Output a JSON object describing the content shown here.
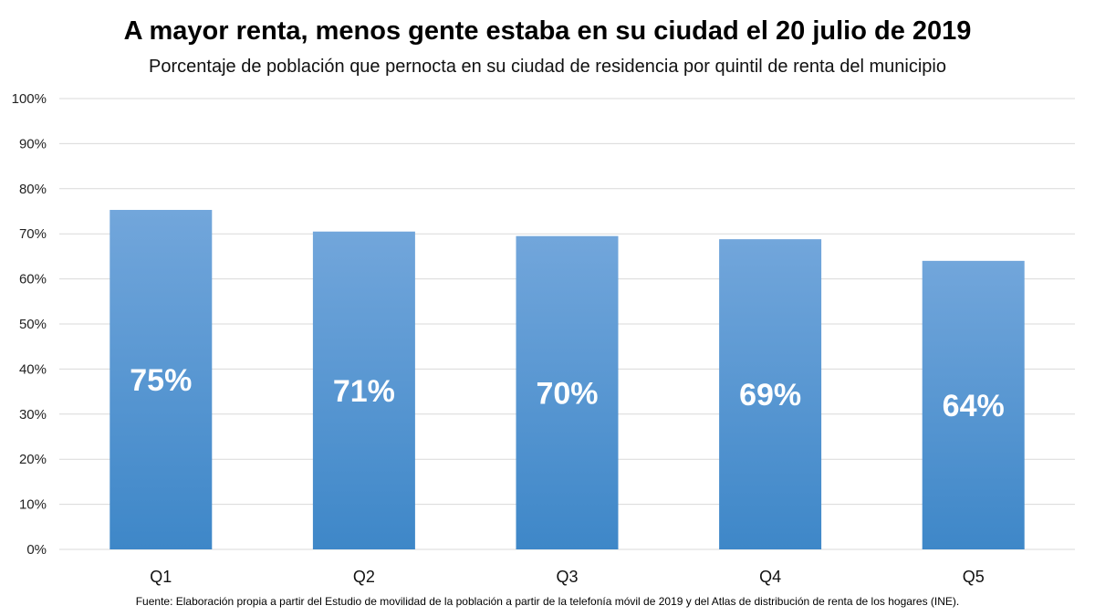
{
  "chart_data": {
    "type": "bar",
    "title": "A mayor renta, menos gente estaba en su ciudad el 20 julio de 2019",
    "subtitle": "Porcentaje de población que pernocta en su ciudad de residencia por quintil de renta del municipio",
    "categories": [
      "Q1",
      "Q2",
      "Q3",
      "Q4",
      "Q5"
    ],
    "values": [
      75.3,
      70.5,
      69.5,
      68.8,
      64.0
    ],
    "data_labels": [
      "75%",
      "71%",
      "70%",
      "69%",
      "64%"
    ],
    "ylim": [
      0,
      100
    ],
    "yticks": [
      0,
      10,
      20,
      30,
      40,
      50,
      60,
      70,
      80,
      90,
      100
    ],
    "ytick_labels": [
      "0%",
      "10%",
      "20%",
      "30%",
      "40%",
      "50%",
      "60%",
      "70%",
      "80%",
      "90%",
      "100%"
    ],
    "xlabel": "",
    "ylabel": "",
    "grid": true,
    "bar_color_top": "#72a6db",
    "bar_color_bottom": "#3e87c8",
    "data_label_color": "#ffffff",
    "gridline_color": "#d9d9d9"
  },
  "source": "Fuente: Elaboración propia a partir del Estudio de movilidad de la población a partir de la telefonía móvil de 2019 y del Atlas de distribución de renta de los hogares (INE)."
}
